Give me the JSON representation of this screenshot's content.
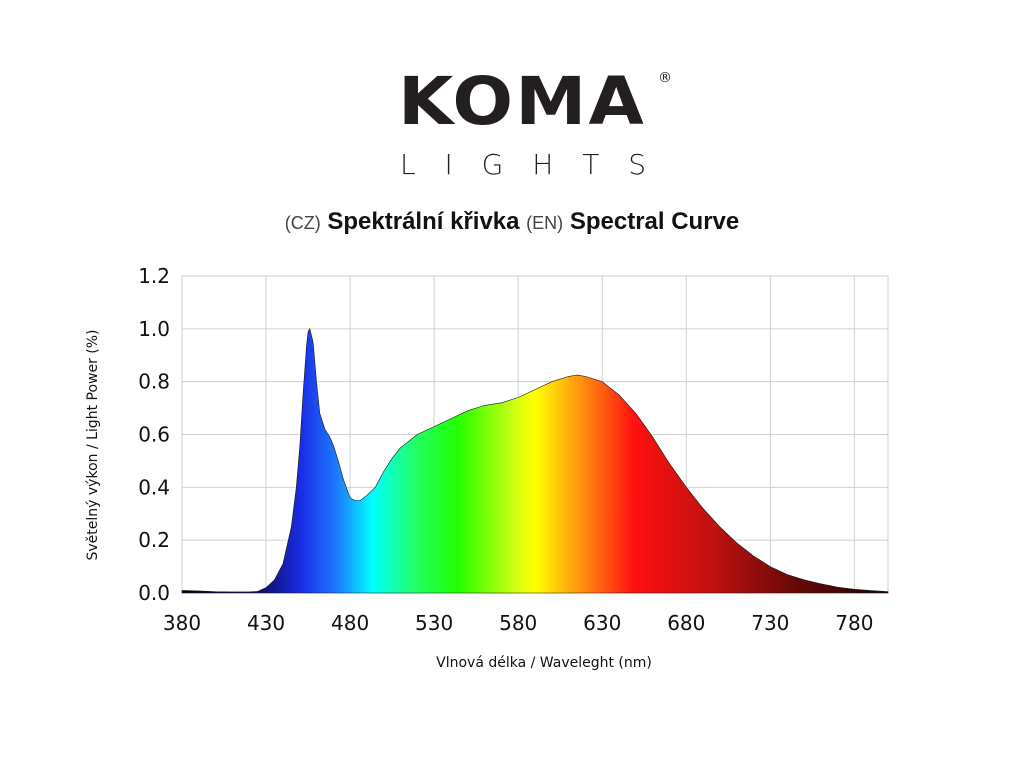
{
  "logo": {
    "brand": "KOMA",
    "sub": "LIGHTS",
    "mark": "®"
  },
  "title": {
    "cz_tag": "(CZ)",
    "cz": "Spektrální křivka",
    "en_tag": "(EN)",
    "en": "Spectral Curve"
  },
  "chart_data": {
    "type": "area",
    "title": "Spectral Curve",
    "xlabel": "Vlnová délka / Waveleght (nm)",
    "ylabel": "Světelný výkon / Light Power (%)",
    "xlim": [
      380,
      800
    ],
    "ylim": [
      0,
      1.2
    ],
    "xticks": [
      380,
      430,
      480,
      530,
      580,
      630,
      680,
      730,
      780
    ],
    "yticks": [
      "0.0",
      "0.2",
      "0.4",
      "0.6",
      "0.8",
      "1.0",
      "1.2"
    ],
    "grid": true,
    "x": [
      380,
      390,
      400,
      410,
      420,
      425,
      430,
      435,
      440,
      445,
      448,
      450,
      452,
      454,
      455,
      456,
      458,
      460,
      462,
      465,
      468,
      470,
      473,
      476,
      480,
      483,
      486,
      490,
      495,
      500,
      505,
      510,
      520,
      530,
      540,
      550,
      560,
      570,
      580,
      590,
      600,
      610,
      615,
      620,
      630,
      640,
      650,
      660,
      670,
      680,
      690,
      700,
      710,
      720,
      730,
      740,
      750,
      760,
      770,
      780,
      790,
      800
    ],
    "y": [
      0.01,
      0.008,
      0.005,
      0.004,
      0.004,
      0.006,
      0.02,
      0.05,
      0.11,
      0.25,
      0.4,
      0.55,
      0.75,
      0.93,
      0.99,
      1.0,
      0.95,
      0.8,
      0.68,
      0.62,
      0.59,
      0.56,
      0.5,
      0.43,
      0.36,
      0.35,
      0.35,
      0.37,
      0.4,
      0.46,
      0.51,
      0.55,
      0.6,
      0.63,
      0.66,
      0.69,
      0.71,
      0.72,
      0.74,
      0.77,
      0.8,
      0.82,
      0.825,
      0.82,
      0.8,
      0.75,
      0.68,
      0.59,
      0.49,
      0.4,
      0.32,
      0.25,
      0.19,
      0.14,
      0.1,
      0.07,
      0.05,
      0.035,
      0.022,
      0.014,
      0.009,
      0.005
    ],
    "colors": {
      "grid": "#d0d0d0",
      "text": "#111111"
    }
  }
}
